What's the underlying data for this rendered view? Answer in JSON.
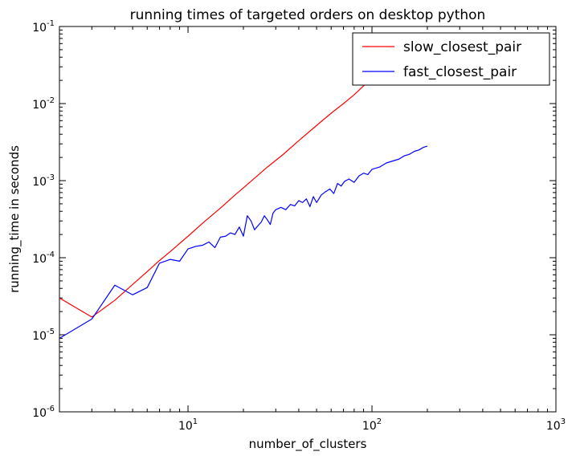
{
  "chart_data": {
    "type": "line",
    "title": "running times of targeted orders on desktop python",
    "xlabel": "number_of_clusters",
    "ylabel": "running_time in seconds",
    "xscale": "log",
    "yscale": "log",
    "xlim": [
      2,
      1000
    ],
    "ylim": [
      1e-06,
      0.1
    ],
    "x_major_ticks": [
      {
        "value": 10,
        "base": "10",
        "exp": "1"
      },
      {
        "value": 100,
        "base": "10",
        "exp": "2"
      },
      {
        "value": 1000,
        "base": "10",
        "exp": "3"
      }
    ],
    "y_major_ticks": [
      {
        "value": 1e-06,
        "base": "10",
        "exp": "-6"
      },
      {
        "value": 1e-05,
        "base": "10",
        "exp": "-5"
      },
      {
        "value": 0.0001,
        "base": "10",
        "exp": "-4"
      },
      {
        "value": 0.001,
        "base": "10",
        "exp": "-3"
      },
      {
        "value": 0.01,
        "base": "10",
        "exp": "-2"
      },
      {
        "value": 0.1,
        "base": "10",
        "exp": "-1"
      }
    ],
    "legend_position": "top-right",
    "series": [
      {
        "name": "slow_closest_pair",
        "color": "#ff0000",
        "x": [
          2,
          3,
          4,
          5,
          6,
          7,
          8,
          10,
          12,
          15,
          18,
          22,
          27,
          33,
          40,
          50,
          60,
          70,
          80,
          90,
          100
        ],
        "y": [
          3e-05,
          1.7e-05,
          2.8e-05,
          4.5e-05,
          6.6e-05,
          9.2e-05,
          0.00012,
          0.00019,
          0.00028,
          0.00044,
          0.00065,
          0.00098,
          0.0015,
          0.0022,
          0.0033,
          0.0052,
          0.0075,
          0.01,
          0.013,
          0.017,
          0.021
        ]
      },
      {
        "name": "fast_closest_pair",
        "color": "#0000ff",
        "x": [
          2,
          3,
          4,
          5,
          6,
          7,
          8,
          9,
          10,
          11,
          12,
          13,
          14,
          15,
          16,
          17,
          18,
          19,
          20,
          21,
          22,
          23,
          24,
          25,
          26,
          27,
          28,
          29,
          30,
          32,
          34,
          36,
          38,
          40,
          42,
          44,
          46,
          48,
          50,
          53,
          56,
          59,
          62,
          65,
          68,
          71,
          75,
          80,
          85,
          90,
          95,
          100,
          110,
          120,
          130,
          140,
          150,
          160,
          170,
          180,
          190,
          200
        ],
        "y": [
          9e-06,
          1.6e-05,
          4.4e-05,
          3.3e-05,
          4.1e-05,
          8.5e-05,
          9.5e-05,
          9e-05,
          0.00013,
          0.00014,
          0.000145,
          0.00016,
          0.000135,
          0.000185,
          0.00019,
          0.00021,
          0.0002,
          0.00025,
          0.00019,
          0.00035,
          0.0003,
          0.00023,
          0.00026,
          0.00029,
          0.00035,
          0.00031,
          0.00027,
          0.00038,
          0.00042,
          0.00045,
          0.00042,
          0.00049,
          0.00047,
          0.00055,
          0.00052,
          0.00058,
          0.00046,
          0.00062,
          0.00052,
          0.00065,
          0.00072,
          0.00078,
          0.00068,
          0.00092,
          0.00085,
          0.00098,
          0.00105,
          0.00095,
          0.00115,
          0.00125,
          0.0012,
          0.0014,
          0.0015,
          0.0017,
          0.0018,
          0.0019,
          0.0021,
          0.0022,
          0.0024,
          0.0025,
          0.0027,
          0.0028
        ]
      }
    ]
  }
}
